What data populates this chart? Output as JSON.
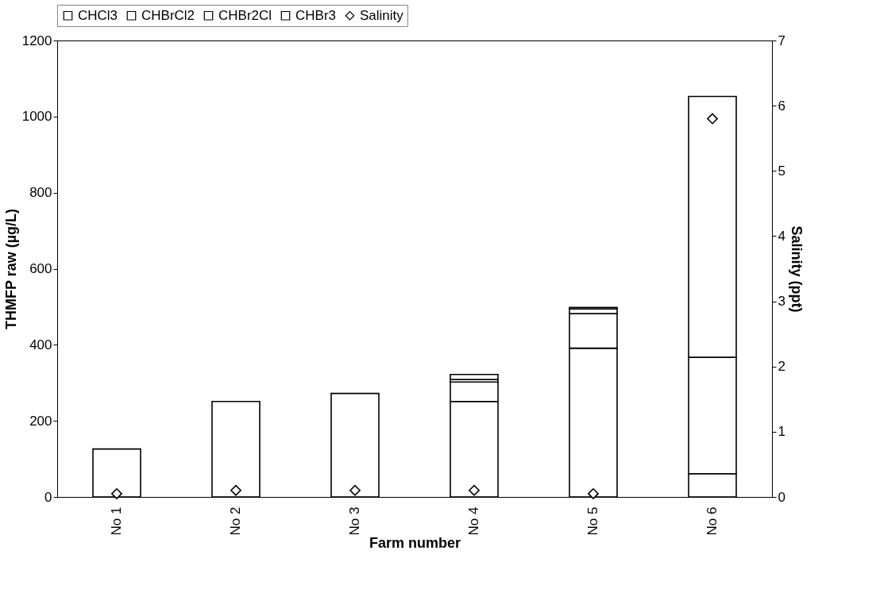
{
  "chart_data": {
    "type": "bar",
    "stacked": true,
    "xlabel": "Farm number",
    "ylabel": "THMFP raw (µg/L)",
    "y2label": "Salinity (ppt)",
    "categories": [
      "No 1",
      "No 2",
      "No 3",
      "No 4",
      "No 5",
      "No 6"
    ],
    "series": [
      {
        "name": "CHCl3",
        "color": "#ffffff",
        "values": [
          126,
          251,
          272,
          251,
          391,
          61
        ]
      },
      {
        "name": "CHBrCl2",
        "color": "#ffffff",
        "values": [
          null,
          null,
          null,
          51,
          91,
          306
        ]
      },
      {
        "name": "CHBr2Cl",
        "color": "#ffffff",
        "values": [
          null,
          null,
          null,
          7,
          12,
          686
        ]
      },
      {
        "name": "CHBr3",
        "color": "#ffffff",
        "values": [
          null,
          null,
          null,
          13,
          4,
          null
        ]
      },
      {
        "name": "Salinity",
        "type": "scatter",
        "axis": "y2",
        "marker": "diamond",
        "color": "#ffffff",
        "values": [
          0.05,
          0.1,
          0.1,
          0.1,
          0.05,
          5.8
        ]
      }
    ],
    "ylim": [
      0,
      1200
    ],
    "yticks": [
      0,
      200,
      400,
      600,
      800,
      1000,
      1200
    ],
    "y2lim": [
      0,
      7
    ],
    "y2ticks": [
      0,
      1,
      2,
      3,
      4,
      5,
      6,
      7
    ],
    "grid": false,
    "legend": "top"
  }
}
